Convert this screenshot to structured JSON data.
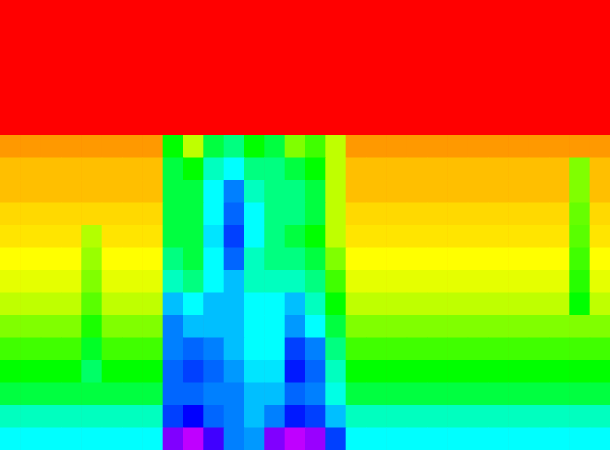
{
  "chart_data": {
    "type": "heatmap",
    "tick_labels": false,
    "zlim": [
      0,
      1
    ],
    "colors": [
      "#ff0000",
      "#ffff00",
      "#00ff00",
      "#00ffff",
      "#0000ff",
      "#ff00ff"
    ],
    "values": [
      [
        0,
        0,
        0,
        0,
        0,
        0,
        0,
        0,
        0,
        0,
        0,
        0,
        0,
        0,
        0,
        0,
        0,
        0,
        0,
        0,
        0,
        0,
        0,
        0,
        0,
        0,
        0,
        0,
        0,
        0
      ],
      [
        0,
        0,
        0,
        0,
        0,
        0,
        0,
        0,
        0,
        0,
        0,
        0,
        0,
        0,
        0,
        0,
        0,
        0,
        0,
        0,
        0,
        0,
        0,
        0,
        0,
        0,
        0,
        0,
        0,
        0
      ],
      [
        0,
        0,
        0,
        0,
        0,
        0,
        0,
        0,
        0,
        0,
        0,
        0,
        0,
        0,
        0,
        0,
        0,
        0,
        0,
        0,
        0,
        0,
        0,
        0,
        0,
        0,
        0,
        0,
        0,
        0
      ],
      [
        0,
        0,
        0,
        0,
        0,
        0,
        0,
        0,
        0,
        0,
        0,
        0,
        0,
        0,
        0,
        0,
        0,
        0,
        0,
        0,
        0,
        0,
        0,
        0,
        0,
        0,
        0,
        0,
        0,
        0
      ],
      [
        0,
        0,
        0,
        0,
        0,
        0,
        0,
        0,
        0,
        0,
        0,
        0,
        0,
        0,
        0,
        0,
        0,
        0,
        0,
        0,
        0,
        0,
        0,
        0,
        0,
        0,
        0,
        0,
        0,
        0
      ],
      [
        0,
        0,
        0,
        0,
        0,
        0,
        0,
        0,
        0,
        0,
        0,
        0,
        0,
        0,
        0,
        0,
        0,
        0,
        0,
        0,
        0,
        0,
        0,
        0,
        0,
        0,
        0,
        0,
        0,
        0
      ],
      [
        0.12,
        0.12,
        0.12,
        0.12,
        0.12,
        0.12,
        0.12,
        0.12,
        0.4,
        0.25,
        0.45,
        0.5,
        0.4,
        0.45,
        0.3,
        0.35,
        0.25,
        0.12,
        0.12,
        0.12,
        0.12,
        0.12,
        0.12,
        0.12,
        0.12,
        0.12,
        0.12,
        0.12,
        0.12,
        0.12
      ],
      [
        0.15,
        0.15,
        0.15,
        0.15,
        0.15,
        0.15,
        0.15,
        0.15,
        0.45,
        0.4,
        0.55,
        0.6,
        0.5,
        0.5,
        0.45,
        0.4,
        0.25,
        0.15,
        0.15,
        0.15,
        0.15,
        0.15,
        0.15,
        0.15,
        0.15,
        0.15,
        0.15,
        0.15,
        0.3,
        0.15
      ],
      [
        0.15,
        0.15,
        0.15,
        0.15,
        0.15,
        0.15,
        0.15,
        0.15,
        0.45,
        0.45,
        0.6,
        0.7,
        0.55,
        0.5,
        0.5,
        0.45,
        0.25,
        0.15,
        0.15,
        0.15,
        0.15,
        0.15,
        0.15,
        0.15,
        0.15,
        0.15,
        0.15,
        0.15,
        0.3,
        0.15
      ],
      [
        0.17,
        0.17,
        0.17,
        0.17,
        0.17,
        0.17,
        0.17,
        0.17,
        0.45,
        0.45,
        0.6,
        0.72,
        0.6,
        0.5,
        0.5,
        0.45,
        0.25,
        0.17,
        0.17,
        0.17,
        0.17,
        0.17,
        0.17,
        0.17,
        0.17,
        0.17,
        0.17,
        0.17,
        0.32,
        0.17
      ],
      [
        0.18,
        0.18,
        0.18,
        0.18,
        0.26,
        0.18,
        0.18,
        0.18,
        0.45,
        0.45,
        0.62,
        0.75,
        0.6,
        0.5,
        0.45,
        0.4,
        0.25,
        0.18,
        0.18,
        0.18,
        0.18,
        0.18,
        0.18,
        0.18,
        0.18,
        0.18,
        0.18,
        0.18,
        0.33,
        0.18
      ],
      [
        0.2,
        0.2,
        0.2,
        0.2,
        0.28,
        0.2,
        0.2,
        0.2,
        0.5,
        0.45,
        0.6,
        0.72,
        0.55,
        0.5,
        0.5,
        0.45,
        0.3,
        0.2,
        0.2,
        0.2,
        0.2,
        0.2,
        0.2,
        0.2,
        0.2,
        0.2,
        0.2,
        0.2,
        0.35,
        0.2
      ],
      [
        0.22,
        0.22,
        0.22,
        0.22,
        0.3,
        0.22,
        0.22,
        0.22,
        0.55,
        0.5,
        0.6,
        0.65,
        0.55,
        0.55,
        0.55,
        0.5,
        0.35,
        0.22,
        0.22,
        0.22,
        0.22,
        0.22,
        0.22,
        0.22,
        0.22,
        0.22,
        0.22,
        0.22,
        0.37,
        0.22
      ],
      [
        0.25,
        0.25,
        0.25,
        0.25,
        0.33,
        0.25,
        0.25,
        0.25,
        0.65,
        0.6,
        0.65,
        0.65,
        0.6,
        0.6,
        0.65,
        0.55,
        0.4,
        0.25,
        0.25,
        0.25,
        0.25,
        0.25,
        0.25,
        0.25,
        0.25,
        0.25,
        0.25,
        0.25,
        0.4,
        0.25
      ],
      [
        0.3,
        0.3,
        0.3,
        0.3,
        0.38,
        0.3,
        0.3,
        0.3,
        0.7,
        0.65,
        0.65,
        0.65,
        0.6,
        0.6,
        0.68,
        0.6,
        0.45,
        0.3,
        0.3,
        0.3,
        0.3,
        0.3,
        0.3,
        0.3,
        0.3,
        0.3,
        0.3,
        0.3,
        0.3,
        0.3
      ],
      [
        0.35,
        0.35,
        0.35,
        0.35,
        0.43,
        0.35,
        0.35,
        0.35,
        0.7,
        0.72,
        0.7,
        0.65,
        0.6,
        0.6,
        0.75,
        0.7,
        0.5,
        0.35,
        0.35,
        0.35,
        0.35,
        0.35,
        0.35,
        0.35,
        0.35,
        0.35,
        0.35,
        0.35,
        0.35,
        0.35
      ],
      [
        0.4,
        0.4,
        0.4,
        0.4,
        0.48,
        0.4,
        0.4,
        0.4,
        0.72,
        0.75,
        0.72,
        0.68,
        0.62,
        0.62,
        0.78,
        0.72,
        0.55,
        0.4,
        0.4,
        0.4,
        0.4,
        0.4,
        0.4,
        0.4,
        0.4,
        0.4,
        0.4,
        0.4,
        0.4,
        0.4
      ],
      [
        0.45,
        0.45,
        0.45,
        0.45,
        0.45,
        0.45,
        0.45,
        0.45,
        0.72,
        0.72,
        0.7,
        0.7,
        0.65,
        0.65,
        0.72,
        0.7,
        0.58,
        0.45,
        0.45,
        0.45,
        0.45,
        0.45,
        0.45,
        0.45,
        0.45,
        0.45,
        0.45,
        0.45,
        0.45,
        0.45
      ],
      [
        0.55,
        0.55,
        0.55,
        0.55,
        0.55,
        0.55,
        0.55,
        0.55,
        0.75,
        0.8,
        0.72,
        0.7,
        0.65,
        0.7,
        0.78,
        0.75,
        0.65,
        0.55,
        0.55,
        0.55,
        0.55,
        0.55,
        0.55,
        0.55,
        0.55,
        0.55,
        0.55,
        0.55,
        0.55,
        0.55
      ],
      [
        0.6,
        0.6,
        0.6,
        0.6,
        0.6,
        0.6,
        0.6,
        0.6,
        0.9,
        0.95,
        0.85,
        0.7,
        0.68,
        0.9,
        0.95,
        0.92,
        0.75,
        0.6,
        0.6,
        0.6,
        0.6,
        0.6,
        0.6,
        0.6,
        0.6,
        0.6,
        0.6,
        0.6,
        0.6,
        0.6
      ]
    ]
  }
}
